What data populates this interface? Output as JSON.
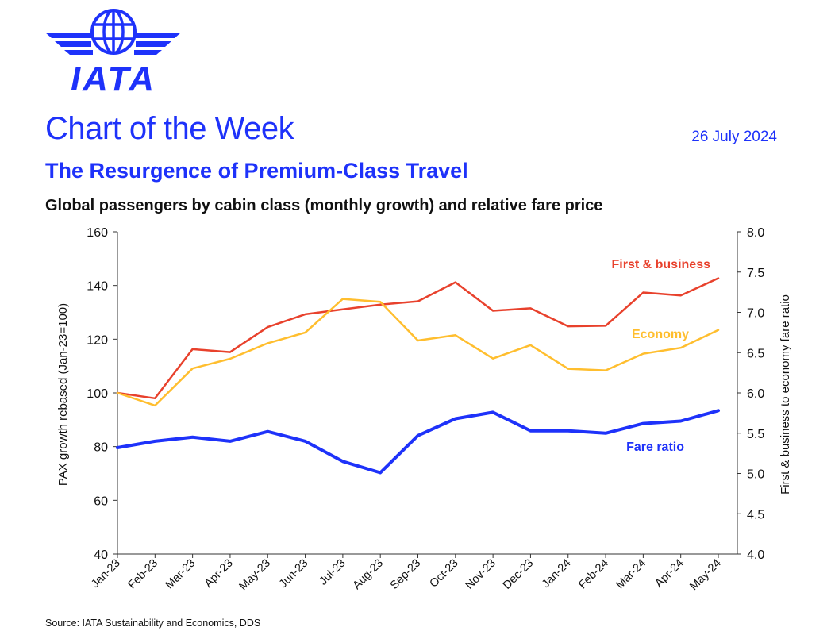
{
  "header": {
    "logo_text": "IATA",
    "series_title": "Chart of the Week",
    "date": "26 July 2024",
    "title": "The Resurgence of Premium-Class Travel",
    "subtitle": "Global passengers by cabin class (monthly growth) and relative fare price"
  },
  "footer": {
    "source": "Source: IATA Sustainability and Economics, DDS"
  },
  "colors": {
    "brand": "#1e32fa",
    "first_business": "#e8412c",
    "economy": "#ffbe2e",
    "fare_ratio": "#1e32fa",
    "axis": "#333333"
  },
  "chart_data": {
    "type": "line",
    "x": [
      "Jan-23",
      "Feb-23",
      "Mar-23",
      "Apr-23",
      "May-23",
      "Jun-23",
      "Jul-23",
      "Aug-23",
      "Sep-23",
      "Oct-23",
      "Nov-23",
      "Dec-23",
      "Jan-24",
      "Feb-24",
      "Mar-24",
      "Apr-24",
      "May-24"
    ],
    "ylabel": "PAX growth rebased (Jan-23=100)",
    "ylim": [
      40,
      160
    ],
    "yticks": [
      40,
      60,
      80,
      100,
      120,
      140,
      160
    ],
    "y2label": "First & business to economy fare ratio",
    "y2lim": [
      4.0,
      8.0
    ],
    "y2ticks": [
      "4.0",
      "4.5",
      "5.0",
      "5.5",
      "6.0",
      "6.5",
      "7.0",
      "7.5",
      "8.0"
    ],
    "grid": false,
    "series": [
      {
        "name": "First & business",
        "axis": "left",
        "color": "#e8412c",
        "values": [
          100,
          98,
          116.3,
          115.2,
          124.5,
          129.3,
          131.1,
          132.9,
          134.1,
          141.2,
          130.6,
          131.5,
          124.8,
          125,
          137.4,
          136.3,
          142.7
        ]
      },
      {
        "name": "Economy",
        "axis": "left",
        "color": "#ffbe2e",
        "values": [
          100,
          95.3,
          109.1,
          112.7,
          118.5,
          122.5,
          135,
          133.9,
          119.5,
          121.5,
          112.8,
          117.8,
          109,
          108.4,
          114.6,
          116.8,
          123.4
        ]
      },
      {
        "name": "Fare ratio",
        "axis": "right",
        "color": "#1e32fa",
        "values": [
          5.32,
          5.4,
          5.45,
          5.4,
          5.52,
          5.4,
          5.15,
          5.01,
          5.47,
          5.68,
          5.76,
          5.53,
          5.53,
          5.5,
          5.62,
          5.65,
          5.78
        ]
      }
    ]
  }
}
